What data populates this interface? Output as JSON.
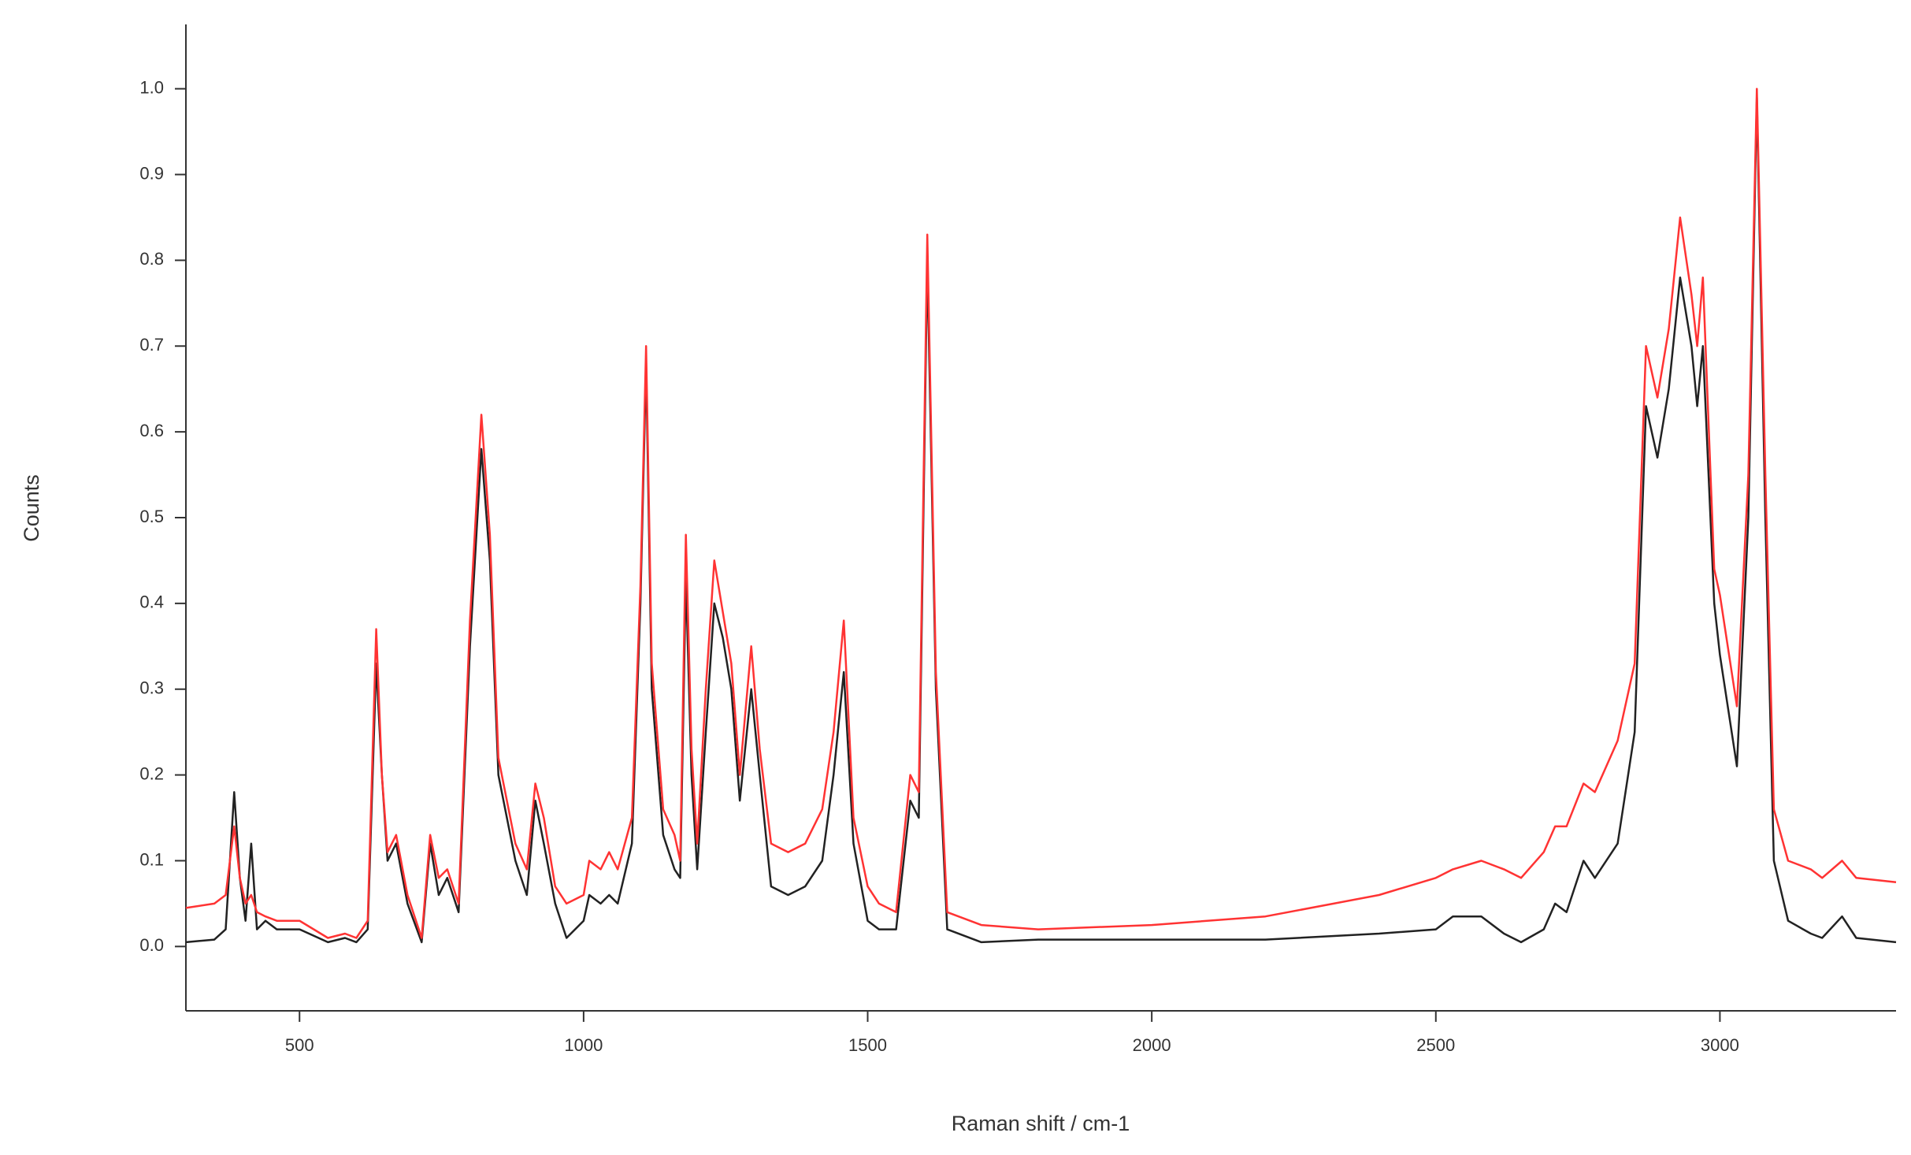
{
  "chart_data": {
    "type": "line",
    "x_label": "Raman shift / cm-1",
    "y_label": "Counts",
    "x": [
      300,
      350,
      370,
      385,
      395,
      405,
      415,
      425,
      440,
      460,
      500,
      550,
      580,
      600,
      620,
      635,
      645,
      655,
      670,
      690,
      715,
      730,
      745,
      760,
      780,
      800,
      820,
      835,
      850,
      880,
      900,
      915,
      930,
      950,
      970,
      1000,
      1010,
      1030,
      1045,
      1060,
      1085,
      1100,
      1110,
      1120,
      1140,
      1160,
      1170,
      1180,
      1190,
      1200,
      1215,
      1230,
      1245,
      1260,
      1275,
      1295,
      1310,
      1330,
      1360,
      1390,
      1420,
      1440,
      1458,
      1475,
      1500,
      1520,
      1550,
      1575,
      1590,
      1605,
      1620,
      1640,
      1700,
      1800,
      2000,
      2200,
      2400,
      2500,
      2530,
      2580,
      2620,
      2650,
      2690,
      2710,
      2730,
      2760,
      2780,
      2820,
      2850,
      2870,
      2890,
      2910,
      2930,
      2950,
      2960,
      2970,
      2990,
      3000,
      3030,
      3050,
      3065,
      3080,
      3095,
      3120,
      3160,
      3180,
      3215,
      3240,
      3310
    ],
    "series": [
      {
        "color": "#222222",
        "values": [
          0.005,
          0.008,
          0.02,
          0.18,
          0.08,
          0.03,
          0.12,
          0.02,
          0.03,
          0.02,
          0.02,
          0.005,
          0.01,
          0.005,
          0.02,
          0.33,
          0.2,
          0.1,
          0.12,
          0.05,
          0.005,
          0.12,
          0.06,
          0.08,
          0.04,
          0.35,
          0.58,
          0.45,
          0.2,
          0.1,
          0.06,
          0.17,
          0.12,
          0.05,
          0.01,
          0.03,
          0.06,
          0.05,
          0.06,
          0.05,
          0.12,
          0.4,
          0.68,
          0.3,
          0.13,
          0.09,
          0.08,
          0.43,
          0.2,
          0.09,
          0.25,
          0.4,
          0.36,
          0.3,
          0.17,
          0.3,
          0.2,
          0.07,
          0.06,
          0.07,
          0.1,
          0.2,
          0.32,
          0.12,
          0.03,
          0.02,
          0.02,
          0.17,
          0.15,
          0.8,
          0.3,
          0.02,
          0.005,
          0.008,
          0.008,
          0.008,
          0.015,
          0.02,
          0.035,
          0.035,
          0.015,
          0.005,
          0.02,
          0.05,
          0.04,
          0.1,
          0.08,
          0.12,
          0.25,
          0.63,
          0.57,
          0.65,
          0.78,
          0.7,
          0.63,
          0.7,
          0.4,
          0.34,
          0.21,
          0.5,
          0.99,
          0.5,
          0.1,
          0.03,
          0.015,
          0.01,
          0.035,
          0.01,
          0.005
        ]
      },
      {
        "color": "#ff3333",
        "values": [
          0.045,
          0.05,
          0.06,
          0.14,
          0.08,
          0.05,
          0.06,
          0.04,
          0.035,
          0.03,
          0.03,
          0.01,
          0.015,
          0.01,
          0.03,
          0.37,
          0.2,
          0.11,
          0.13,
          0.06,
          0.01,
          0.13,
          0.08,
          0.09,
          0.05,
          0.38,
          0.62,
          0.48,
          0.22,
          0.12,
          0.09,
          0.19,
          0.15,
          0.07,
          0.05,
          0.06,
          0.1,
          0.09,
          0.11,
          0.09,
          0.15,
          0.42,
          0.7,
          0.33,
          0.16,
          0.13,
          0.1,
          0.48,
          0.23,
          0.12,
          0.3,
          0.45,
          0.39,
          0.33,
          0.2,
          0.35,
          0.23,
          0.12,
          0.11,
          0.12,
          0.16,
          0.25,
          0.38,
          0.15,
          0.07,
          0.05,
          0.04,
          0.2,
          0.18,
          0.83,
          0.32,
          0.04,
          0.025,
          0.02,
          0.025,
          0.035,
          0.06,
          0.08,
          0.09,
          0.1,
          0.09,
          0.08,
          0.11,
          0.14,
          0.14,
          0.19,
          0.18,
          0.24,
          0.33,
          0.7,
          0.64,
          0.72,
          0.85,
          0.76,
          0.7,
          0.78,
          0.44,
          0.41,
          0.28,
          0.55,
          1.0,
          0.55,
          0.16,
          0.1,
          0.09,
          0.08,
          0.1,
          0.08,
          0.075
        ]
      }
    ],
    "xlim": [
      300,
      3310
    ],
    "ylim": [
      -0.075,
      1.075
    ],
    "xticks": [
      500,
      1000,
      1500,
      2000,
      2500,
      3000
    ],
    "yticks": [
      {
        "value": 0,
        "label": "0.0"
      },
      0.1,
      0.2,
      0.3,
      0.4,
      0.5,
      0.6,
      0.7,
      0.8,
      0.9,
      {
        "value": 1,
        "label": "1.0"
      }
    ],
    "grid": false
  }
}
